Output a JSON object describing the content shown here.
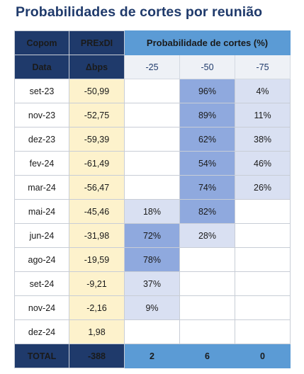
{
  "title": "Probabilidades de cortes por reunião",
  "header": {
    "copom": "Copom",
    "prexdi": "PRExDI",
    "prob_title": "Probabilidade de cortes (%)",
    "data": "Data",
    "dbps": "Δbps",
    "cols": [
      "-25",
      "-50",
      "-75"
    ]
  },
  "rows": [
    {
      "date": "set-23",
      "bps": "-50,99",
      "p25": "",
      "p50": "96%",
      "p75": "4%"
    },
    {
      "date": "nov-23",
      "bps": "-52,75",
      "p25": "",
      "p50": "89%",
      "p75": "11%"
    },
    {
      "date": "dez-23",
      "bps": "-59,39",
      "p25": "",
      "p50": "62%",
      "p75": "38%"
    },
    {
      "date": "fev-24",
      "bps": "-61,49",
      "p25": "",
      "p50": "54%",
      "p75": "46%"
    },
    {
      "date": "mar-24",
      "bps": "-56,47",
      "p25": "",
      "p50": "74%",
      "p75": "26%"
    },
    {
      "date": "mai-24",
      "bps": "-45,46",
      "p25": "18%",
      "p50": "82%",
      "p75": ""
    },
    {
      "date": "jun-24",
      "bps": "-31,98",
      "p25": "72%",
      "p50": "28%",
      "p75": ""
    },
    {
      "date": "ago-24",
      "bps": "-19,59",
      "p25": "78%",
      "p50": "",
      "p75": ""
    },
    {
      "date": "set-24",
      "bps": "-9,21",
      "p25": "37%",
      "p50": "",
      "p75": ""
    },
    {
      "date": "nov-24",
      "bps": "-2,16",
      "p25": "9%",
      "p50": "",
      "p75": ""
    },
    {
      "date": "dez-24",
      "bps": "1,98",
      "p25": "",
      "p50": "",
      "p75": ""
    }
  ],
  "total": {
    "label": "TOTAL",
    "bps": "-388",
    "c25": "2",
    "c50": "6",
    "c75": "0"
  },
  "colors": {
    "navy": "#1f3a6b",
    "header_blue": "#5b9bd5",
    "yellow": "#fdf2cc",
    "light_blue": "#d9e0f2",
    "mid_blue": "#8fa9de"
  }
}
